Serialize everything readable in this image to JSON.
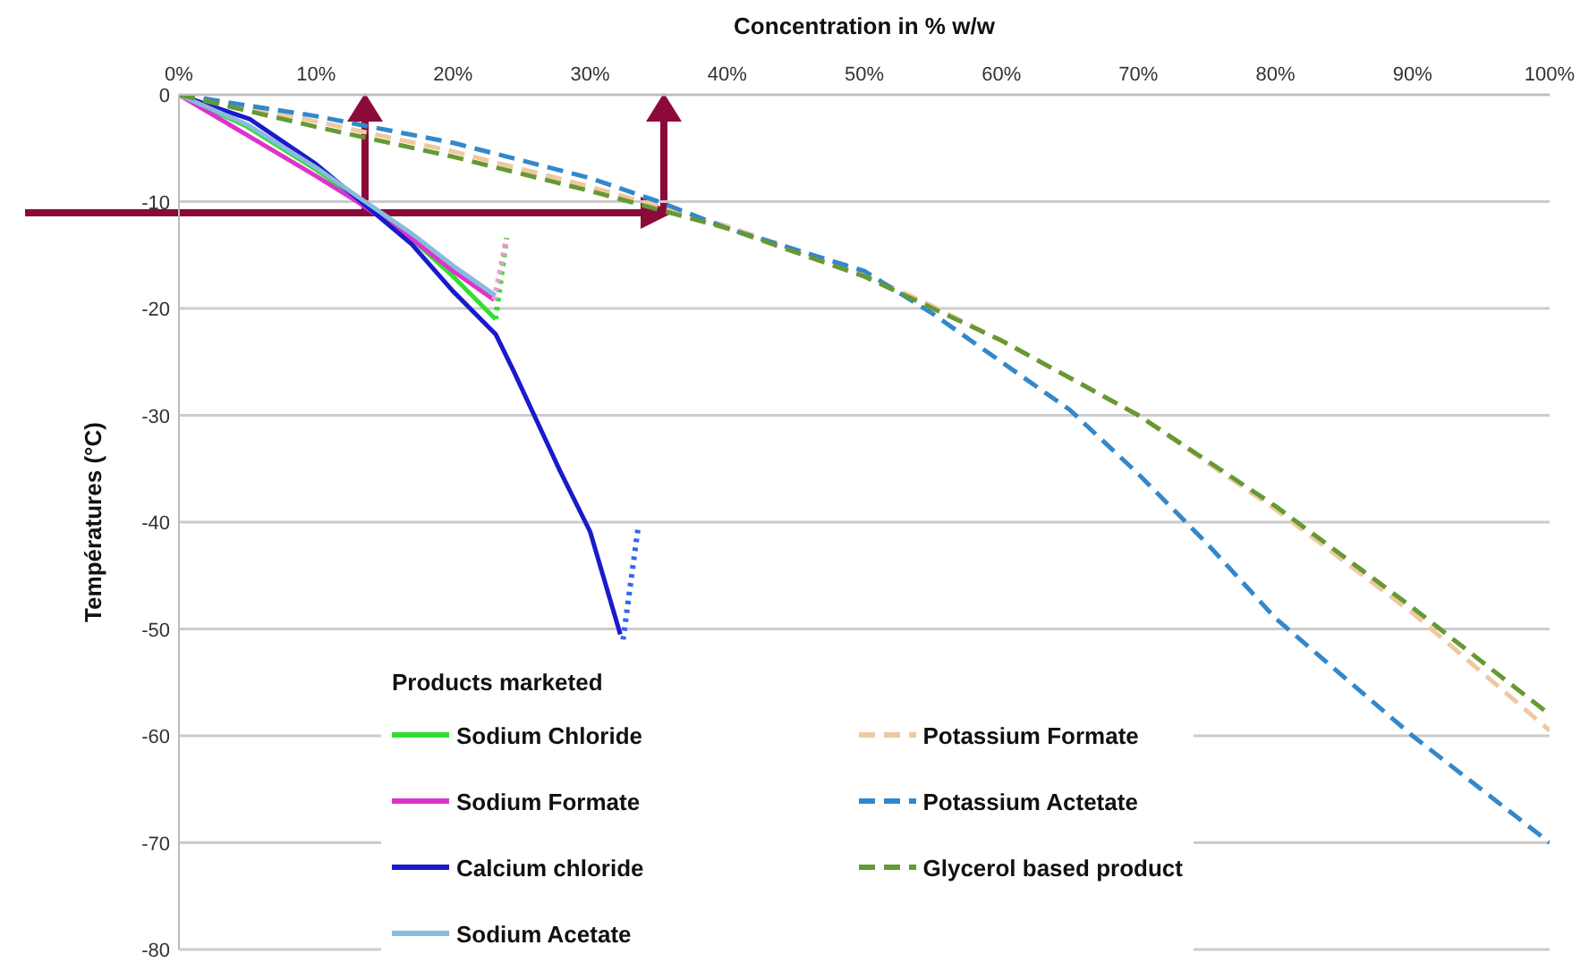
{
  "chart_data": {
    "type": "line",
    "xlabel": "Concentration in % w/w",
    "ylabel": "Températures (°C)",
    "legend_title": "Products marketed",
    "legend": "bottom",
    "grid": "y",
    "marker": "none",
    "xlim": [
      0,
      100
    ],
    "xticks": [
      {
        "value": 0,
        "label": "0%"
      },
      {
        "value": 10,
        "label": "10%"
      },
      {
        "value": 20,
        "label": "20%"
      },
      {
        "value": 30,
        "label": "30%"
      },
      {
        "value": 40,
        "label": "40%"
      },
      {
        "value": 50,
        "label": "50%"
      },
      {
        "value": 60,
        "label": "60%"
      },
      {
        "value": 70,
        "label": "70%"
      },
      {
        "value": 80,
        "label": "80%"
      },
      {
        "value": 90,
        "label": "90%"
      },
      {
        "value": 100,
        "label": "100%"
      }
    ],
    "ylim": [
      -80,
      0
    ],
    "yticks": [
      0,
      -10,
      -20,
      -30,
      -40,
      -50,
      -60,
      -70,
      -80
    ],
    "series": [
      {
        "name": "Sodium Chloride",
        "color": "#33dd33",
        "line_style": "solid",
        "x": [
          0,
          5,
          10,
          13,
          17,
          20,
          23.1
        ],
        "values": [
          0,
          -3,
          -7,
          -9.7,
          -13.5,
          -17,
          -21
        ]
      },
      {
        "name": "Sodium Formate",
        "color": "#dd33cc",
        "line_style": "solid",
        "x": [
          0,
          5,
          10,
          13,
          17,
          20,
          23
        ],
        "values": [
          0,
          -3.8,
          -7.6,
          -10,
          -13.5,
          -16.5,
          -19.2
        ]
      },
      {
        "name": "Calcium chloride",
        "color": "#1a1acc",
        "line_style": "solid",
        "x": [
          0,
          5.2,
          10,
          13,
          17,
          20,
          23.1,
          24.4,
          27.8,
          30,
          32.2
        ],
        "values": [
          0,
          -2.3,
          -6.5,
          -9.7,
          -14,
          -18.4,
          -22.4,
          -25.8,
          -35.2,
          -40.9,
          -50.5
        ]
      },
      {
        "name": "Sodium Acetate",
        "color": "#88bbdd",
        "line_style": "solid",
        "x": [
          0,
          5,
          10,
          13,
          17,
          20,
          23.1
        ],
        "values": [
          0,
          -2.8,
          -6.8,
          -9.5,
          -13,
          -16,
          -18.8
        ]
      },
      {
        "name": "Potassium Formate",
        "color": "#f0c8a0",
        "line_style": "dashed",
        "x": [
          0,
          10,
          20,
          30,
          40,
          50,
          55,
          60,
          70,
          80,
          90,
          100
        ],
        "values": [
          0,
          -2.5,
          -5.3,
          -8.6,
          -12.3,
          -16.8,
          -19.8,
          -23,
          -30,
          -38.8,
          -48.5,
          -59.5
        ]
      },
      {
        "name": "Potassium Actetate",
        "color": "#3388cc",
        "line_style": "dashed",
        "x": [
          0,
          10,
          20,
          30,
          35,
          40,
          50,
          55,
          60,
          65,
          70,
          75,
          80,
          85,
          90,
          95,
          100
        ],
        "values": [
          0,
          -2,
          -4.5,
          -7.8,
          -10,
          -12.5,
          -16.5,
          -20.5,
          -25,
          -29.5,
          -35.5,
          -42,
          -49,
          -54.5,
          -60,
          -65,
          -70
        ]
      },
      {
        "name": "Glycerol based product",
        "color": "#669933",
        "line_style": "dashed",
        "x": [
          0,
          10,
          20,
          30,
          40,
          50,
          55,
          60,
          70,
          80,
          90,
          100
        ],
        "values": [
          0,
          -3,
          -5.8,
          -9,
          -12.5,
          -17,
          -20,
          -23,
          -30,
          -38.5,
          -48,
          -58
        ]
      },
      {
        "color": "#33dd33",
        "line_style": "dotted",
        "x": [
          23.1,
          23.9
        ],
        "values": [
          -21,
          -13.4
        ]
      },
      {
        "color": "#ee99cc",
        "line_style": "dotted",
        "x": [
          23,
          23.9
        ],
        "values": [
          -19.2,
          -13.4
        ]
      },
      {
        "color": "#3366ee",
        "line_style": "dotted",
        "x": [
          32.4,
          33.5
        ],
        "values": [
          -51,
          -40.5
        ]
      }
    ]
  }
}
